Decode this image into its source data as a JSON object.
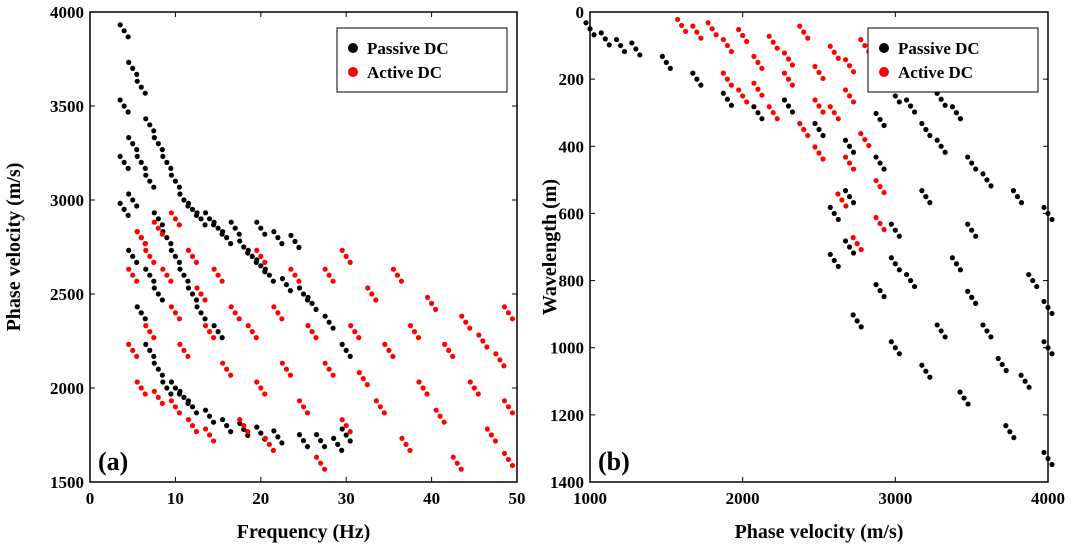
{
  "colors": {
    "passive": "#000000",
    "active": "#ff0000"
  },
  "chart_data": [
    {
      "type": "scatter",
      "panel_label": "(a)",
      "xlabel": "Frequency (Hz)",
      "ylabel": "Phase velocity (m/s)",
      "xlim": [
        0,
        50
      ],
      "ylim": [
        1500,
        4000
      ],
      "y_reversed": false,
      "xticks": [
        0,
        10,
        20,
        30,
        40,
        50
      ],
      "yticks": [
        1500,
        2000,
        2500,
        3000,
        3500,
        4000
      ],
      "legend_placement": "top-right",
      "series": [
        {
          "name": "Passive DC",
          "color": "#000000",
          "points": [
            [
              4,
              3900
            ],
            [
              4,
              3500
            ],
            [
              4,
              3200
            ],
            [
              4,
              2950
            ],
            [
              5,
              3700
            ],
            [
              5,
              3300
            ],
            [
              5,
              3000
            ],
            [
              5,
              2700
            ],
            [
              6,
              3600
            ],
            [
              6,
              3200
            ],
            [
              6,
              2800
            ],
            [
              6,
              2400
            ],
            [
              7,
              3400
            ],
            [
              7,
              3100
            ],
            [
              7,
              2600
            ],
            [
              7,
              2200
            ],
            [
              8,
              3300
            ],
            [
              8,
              2900
            ],
            [
              8,
              2500
            ],
            [
              8,
              2100
            ],
            [
              9,
              3200
            ],
            [
              9,
              2800
            ],
            [
              9,
              2000
            ],
            [
              10,
              3100
            ],
            [
              10,
              2700
            ],
            [
              10,
              2000
            ],
            [
              11,
              3000
            ],
            [
              11,
              2600
            ],
            [
              11,
              1950
            ],
            [
              12,
              2950
            ],
            [
              12,
              2500
            ],
            [
              12,
              1900
            ],
            [
              13,
              2900
            ],
            [
              13,
              2400
            ],
            [
              14,
              2900
            ],
            [
              14,
              1850
            ],
            [
              15,
              2850
            ],
            [
              15,
              2300
            ],
            [
              16,
              2800
            ],
            [
              16,
              1800
            ],
            [
              17,
              2850
            ],
            [
              18,
              2750
            ],
            [
              18,
              1780
            ],
            [
              19,
              2700
            ],
            [
              20,
              2850
            ],
            [
              20,
              2650
            ],
            [
              20,
              1760
            ],
            [
              21,
              2600
            ],
            [
              22,
              2800
            ],
            [
              22,
              1740
            ],
            [
              23,
              2550
            ],
            [
              24,
              2780
            ],
            [
              25,
              2500
            ],
            [
              25,
              1720
            ],
            [
              26,
              2450
            ],
            [
              27,
              1720
            ],
            [
              28,
              2350
            ],
            [
              29,
              1700
            ],
            [
              30,
              1750
            ],
            [
              30,
              2200
            ]
          ]
        },
        {
          "name": "Active DC",
          "color": "#ff0000",
          "points": [
            [
              5,
              2600
            ],
            [
              5,
              2200
            ],
            [
              6,
              2800
            ],
            [
              6,
              2000
            ],
            [
              7,
              2700
            ],
            [
              7,
              2300
            ],
            [
              8,
              2850
            ],
            [
              8,
              1950
            ],
            [
              9,
              2600
            ],
            [
              10,
              2900
            ],
            [
              10,
              2400
            ],
            [
              10,
              1900
            ],
            [
              11,
              2200
            ],
            [
              12,
              2700
            ],
            [
              12,
              1800
            ],
            [
              13,
              2500
            ],
            [
              14,
              2300
            ],
            [
              14,
              1750
            ],
            [
              15,
              2600
            ],
            [
              16,
              2100
            ],
            [
              17,
              2400
            ],
            [
              18,
              1800
            ],
            [
              19,
              2300
            ],
            [
              20,
              2700
            ],
            [
              20,
              2000
            ],
            [
              21,
              1700
            ],
            [
              22,
              2400
            ],
            [
              23,
              2100
            ],
            [
              24,
              2600
            ],
            [
              25,
              1900
            ],
            [
              26,
              2300
            ],
            [
              27,
              1600
            ],
            [
              28,
              2600
            ],
            [
              28,
              2100
            ],
            [
              30,
              2700
            ],
            [
              30,
              1800
            ],
            [
              31,
              2300
            ],
            [
              32,
              2050
            ],
            [
              33,
              2500
            ],
            [
              34,
              1900
            ],
            [
              35,
              2200
            ],
            [
              36,
              2600
            ],
            [
              37,
              1700
            ],
            [
              38,
              2300
            ],
            [
              39,
              2000
            ],
            [
              40,
              2450
            ],
            [
              41,
              1850
            ],
            [
              42,
              2200
            ],
            [
              43,
              1600
            ],
            [
              44,
              2350
            ],
            [
              45,
              2000
            ],
            [
              46,
              2250
            ],
            [
              47,
              1750
            ],
            [
              48,
              2150
            ],
            [
              49,
              2400
            ],
            [
              49,
              1900
            ],
            [
              49,
              1620
            ]
          ]
        }
      ]
    },
    {
      "type": "scatter",
      "panel_label": "(b)",
      "xlabel": "Phase velocity (m/s)",
      "ylabel": "Wavelength (m)",
      "xlim": [
        1000,
        4000
      ],
      "ylim": [
        0,
        1400
      ],
      "y_reversed": true,
      "xticks": [
        1000,
        2000,
        3000,
        4000
      ],
      "yticks": [
        0,
        200,
        400,
        600,
        800,
        1000,
        1200,
        1400
      ],
      "legend_placement": "top-right",
      "series": [
        {
          "name": "Passive DC",
          "color": "#000000",
          "points": [
            [
              1000,
              50
            ],
            [
              1100,
              80
            ],
            [
              1200,
              100
            ],
            [
              1300,
              110
            ],
            [
              1500,
              150
            ],
            [
              1700,
              200
            ],
            [
              1900,
              260
            ],
            [
              2100,
              300
            ],
            [
              2300,
              280
            ],
            [
              2500,
              350
            ],
            [
              2700,
              400
            ],
            [
              2900,
              320
            ],
            [
              3000,
              250
            ],
            [
              3100,
              280
            ],
            [
              3300,
              260
            ],
            [
              3400,
              300
            ],
            [
              3200,
              350
            ],
            [
              3300,
              400
            ],
            [
              3500,
              450
            ],
            [
              3600,
              500
            ],
            [
              3800,
              550
            ],
            [
              4000,
              600
            ],
            [
              2900,
              450
            ],
            [
              3200,
              550
            ],
            [
              3500,
              650
            ],
            [
              3900,
              800
            ],
            [
              2700,
              550
            ],
            [
              3000,
              650
            ],
            [
              3400,
              750
            ],
            [
              4000,
              880
            ],
            [
              2600,
              600
            ],
            [
              3000,
              750
            ],
            [
              3500,
              850
            ],
            [
              4000,
              1000
            ],
            [
              2700,
              700
            ],
            [
              3100,
              800
            ],
            [
              3600,
              950
            ],
            [
              2600,
              740
            ],
            [
              2900,
              830
            ],
            [
              3300,
              950
            ],
            [
              3700,
              1050
            ],
            [
              3850,
              1100
            ],
            [
              3000,
              1000
            ],
            [
              3200,
              1070
            ],
            [
              3450,
              1150
            ],
            [
              3750,
              1250
            ],
            [
              2750,
              920
            ],
            [
              4000,
              1330
            ]
          ]
        },
        {
          "name": "Active DC",
          "color": "#ff0000",
          "points": [
            [
              1600,
              40
            ],
            [
              1700,
              60
            ],
            [
              1800,
              50
            ],
            [
              1900,
              100
            ],
            [
              2000,
              70
            ],
            [
              2100,
              150
            ],
            [
              2200,
              90
            ],
            [
              2300,
              200
            ],
            [
              2400,
              60
            ],
            [
              2500,
              180
            ],
            [
              2600,
              120
            ],
            [
              2700,
              250
            ],
            [
              2800,
              100
            ],
            [
              2900,
              200
            ],
            [
              2000,
              250
            ],
            [
              2200,
              300
            ],
            [
              2400,
              350
            ],
            [
              2600,
              300
            ],
            [
              2800,
              380
            ],
            [
              2500,
              420
            ],
            [
              2700,
              450
            ],
            [
              2900,
              520
            ],
            [
              2650,
              560
            ],
            [
              2900,
              630
            ],
            [
              2750,
              690
            ],
            [
              1900,
              200
            ],
            [
              2100,
              230
            ],
            [
              2300,
              140
            ],
            [
              2500,
              280
            ],
            [
              2700,
              160
            ]
          ]
        }
      ]
    }
  ]
}
